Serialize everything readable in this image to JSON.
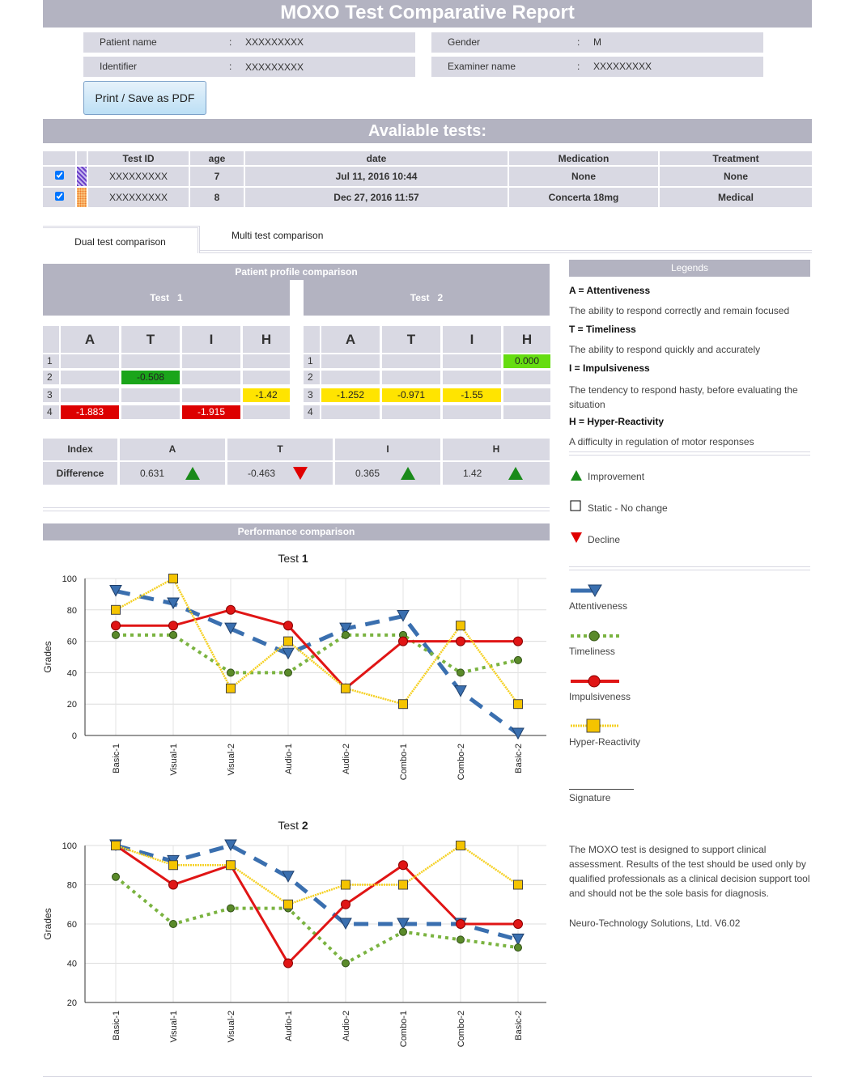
{
  "header": {
    "title": "MOXO Test Comparative Report"
  },
  "patient": {
    "name_label": "Patient name",
    "name_value": "XXXXXXXXX",
    "gender_label": "Gender",
    "gender_value": "M",
    "id_label": "Identifier",
    "id_value": "XXXXXXXXX",
    "examiner_label": "Examiner name",
    "examiner_value": "XXXXXXXXX",
    "colon": ":"
  },
  "print_button": "Print / Save as PDF",
  "tests_section": {
    "title": "Avaliable tests:",
    "columns": [
      "Test ID",
      "age",
      "date",
      "Medication",
      "Treatment"
    ],
    "rows": [
      {
        "checked": true,
        "color": "#6a3fc8",
        "id": "XXXXXXXXX",
        "age": "7",
        "date": "Jul 11, 2016 10:44",
        "medication": "None",
        "treatment": "None"
      },
      {
        "checked": true,
        "color": "#f07a2a",
        "id": "XXXXXXXXX",
        "age": "8",
        "date": "Dec 27, 2016 11:57",
        "medication": "Concerta 18mg",
        "treatment": "Medical"
      }
    ]
  },
  "tabs": {
    "dual": "Dual test comparison",
    "multi": "Multi test comparison"
  },
  "profile": {
    "title": "Patient profile comparison",
    "test1_label": "Test   1",
    "test2_label": "Test   2",
    "cols": [
      "A",
      "T",
      "I",
      "H"
    ],
    "rows": [
      "1",
      "2",
      "3",
      "4"
    ],
    "test1_values": [
      {
        "row": 4,
        "col": 0,
        "value": "-1.883",
        "color": "#dd0000"
      },
      {
        "row": 2,
        "col": 1,
        "value": "-0.508",
        "color": "#1aa51a"
      },
      {
        "row": 4,
        "col": 2,
        "value": "-1.915",
        "color": "#dd0000"
      },
      {
        "row": 3,
        "col": 3,
        "value": "-1.42",
        "color": "#ffe400"
      }
    ],
    "test2_values": [
      {
        "row": 3,
        "col": 0,
        "value": "-1.252",
        "color": "#ffe400"
      },
      {
        "row": 3,
        "col": 1,
        "value": "-0.971",
        "color": "#ffe400"
      },
      {
        "row": 3,
        "col": 2,
        "value": "-1.55",
        "color": "#ffe400"
      },
      {
        "row": 1,
        "col": 3,
        "value": "0.000",
        "color": "#66dd11"
      }
    ]
  },
  "difference": {
    "index_label": "Index",
    "row_label": "Difference",
    "cols": [
      "A",
      "T",
      "I",
      "H"
    ],
    "values": [
      "0.631",
      "-0.463",
      "0.365",
      "1.42"
    ],
    "trend": [
      "up",
      "down",
      "up",
      "up"
    ]
  },
  "legends": {
    "title": "Legends",
    "items": [
      {
        "title": "A = Attentiveness",
        "text": "The ability to respond correctly and remain focused"
      },
      {
        "title": "T = Timeliness",
        "text": "The ability to respond quickly and accurately"
      },
      {
        "title": "I = Impulsiveness",
        "text": "The tendency to respond hasty, before evaluating the situation"
      },
      {
        "title": "H = Hyper-Reactivity",
        "text": "A difficulty in regulation of motor responses"
      }
    ],
    "status": [
      {
        "icon": "up-triangle-icon",
        "label": "Improvement",
        "color": "#1a8a1a"
      },
      {
        "icon": "square-icon",
        "label": "Static - No change",
        "color": "#000000"
      },
      {
        "icon": "down-triangle-icon",
        "label": "Decline",
        "color": "#e00000"
      }
    ],
    "series": [
      {
        "label": "Attentiveness",
        "color": "#3a6faf"
      },
      {
        "label": "Timeliness",
        "color": "#7ab340"
      },
      {
        "label": "Impulsiveness",
        "color": "#e01515"
      },
      {
        "label": "Hyper-Reactivity",
        "color": "#f5d020"
      }
    ],
    "signature": "Signature",
    "disclaimer": "The MOXO test is designed to support clinical assessment. Results of the test should be used only by qualified professionals as a clinical decision support tool and should not be the sole basis for diagnosis.",
    "company": "Neuro-Technology Solutions, Ltd. V6.02"
  },
  "performance": {
    "title": "Performance comparison"
  },
  "chart_data": [
    {
      "type": "line",
      "title_prefix": "Test",
      "title_number": "1",
      "ylabel": "Grades",
      "categories": [
        "Basic-1",
        "Visual-1",
        "Visual-2",
        "Audio-1",
        "Audio-2",
        "Combo-1",
        "Combo-2",
        "Basic-2"
      ],
      "ylim": [
        0,
        100
      ],
      "yticks": [
        "0",
        "20",
        "40",
        "60",
        "80",
        "100"
      ],
      "series": [
        {
          "name": "Attentiveness",
          "values": [
            92,
            84,
            68,
            52,
            68,
            76,
            28,
            1
          ]
        },
        {
          "name": "Timeliness",
          "values": [
            64,
            64,
            40,
            40,
            64,
            64,
            40,
            48
          ]
        },
        {
          "name": "Impulsiveness",
          "values": [
            70,
            70,
            80,
            70,
            30,
            60,
            60,
            60
          ]
        },
        {
          "name": "Hyper-Reactivity",
          "values": [
            80,
            100,
            30,
            60,
            30,
            20,
            70,
            20
          ]
        }
      ]
    },
    {
      "type": "line",
      "title_prefix": "Test",
      "title_number": "2",
      "ylabel": "Grades",
      "categories": [
        "Basic-1",
        "Visual-1",
        "Visual-2",
        "Audio-1",
        "Audio-2",
        "Combo-1",
        "Combo-2",
        "Basic-2"
      ],
      "ylim": [
        20,
        100
      ],
      "yticks": [
        "20",
        "40",
        "60",
        "80",
        "100"
      ],
      "series": [
        {
          "name": "Attentiveness",
          "values": [
            100,
            92,
            100,
            84,
            60,
            60,
            60,
            52
          ]
        },
        {
          "name": "Timeliness",
          "values": [
            84,
            60,
            68,
            68,
            40,
            56,
            52,
            48
          ]
        },
        {
          "name": "Impulsiveness",
          "values": [
            100,
            80,
            90,
            40,
            70,
            90,
            60,
            60
          ]
        },
        {
          "name": "Hyper-Reactivity",
          "values": [
            100,
            90,
            90,
            70,
            80,
            80,
            100,
            80
          ]
        }
      ]
    }
  ]
}
